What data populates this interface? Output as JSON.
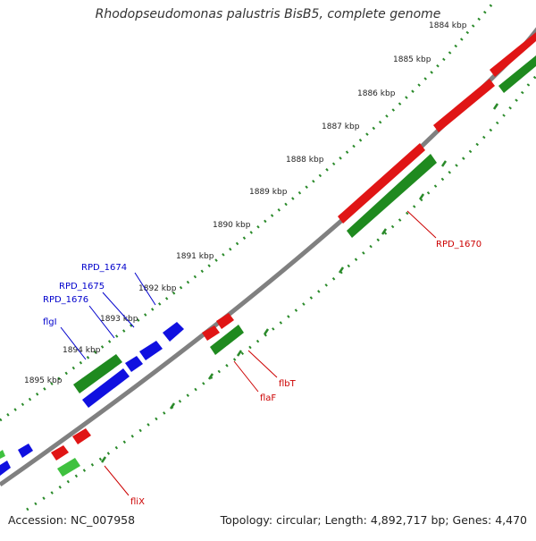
{
  "title": "Rhodopseudomonas palustris BisB5, complete genome",
  "footer": {
    "accession": "Accession: NC_007958",
    "stats": "Topology: circular; Length: 4,892,717 bp; Genes: 4,470"
  },
  "colors": {
    "backbone": "#808080",
    "tick": "#2a8a2a",
    "red_gene": "#e01515",
    "green_gene": "#1f8a1f",
    "light_green_gene": "#3fc13f",
    "blue_gene": "#1010e0",
    "red_label": "#cc0000",
    "blue_label": "#0000cc"
  },
  "ticks": [
    "1884 kbp",
    "1885 kbp",
    "1886 kbp",
    "1887 kbp",
    "1888 kbp",
    "1889 kbp",
    "1890 kbp",
    "1891 kbp",
    "1892 kbp",
    "1893 kbp",
    "1894 kbp",
    "1895 kbp"
  ],
  "gene_labels": {
    "rpd1670": "RPD_1670",
    "flbT": "flbT",
    "flaF": "flaF",
    "fliX": "fliX",
    "rpd1674": "RPD_1674",
    "rpd1675": "RPD_1675",
    "rpd1676": "RPD_1676",
    "flgI": "flgI"
  }
}
